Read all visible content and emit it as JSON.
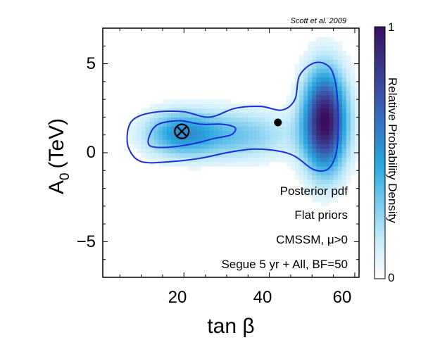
{
  "chart_data": {
    "type": "heatmap",
    "title": "",
    "credit": "Scott et al. 2009",
    "xlabel": "tan β",
    "ylabel_main": "A",
    "ylabel_sub": "0",
    "ylabel_unit": "(TeV)",
    "xlim": [
      1,
      61
    ],
    "ylim": [
      -7,
      7
    ],
    "xticks": [
      20,
      40,
      60
    ],
    "xtick_labels": [
      "20",
      "40",
      "60"
    ],
    "yticks": [
      5,
      0,
      -5
    ],
    "ytick_labels": [
      "5",
      "0",
      "−5"
    ],
    "grid": false,
    "colorbar": {
      "label": "Relative Probability Density",
      "min": 0,
      "max": 1,
      "min_label": "0",
      "max_label": "1",
      "low_color": "#ffffff",
      "mid_color": "#2aa8e0",
      "high_color": "#3b0f5f"
    },
    "contour_color": "#1a2fd6",
    "density_modes": [
      {
        "x": 53,
        "y": 1.8,
        "sx": 3.6,
        "sy": 2.0,
        "w": 1.0
      },
      {
        "x": 19,
        "y": 1.1,
        "sx": 6.0,
        "sy": 0.9,
        "w": 0.45
      },
      {
        "x": 33,
        "y": 1.0,
        "sx": 9.0,
        "sy": 1.0,
        "w": 0.3
      }
    ],
    "contours": [
      {
        "level": "outer",
        "points": [
          [
            7,
            1.4
          ],
          [
            9,
            2.0
          ],
          [
            14,
            2.3
          ],
          [
            20,
            2.3
          ],
          [
            26,
            2.0
          ],
          [
            32,
            2.5
          ],
          [
            38,
            2.6
          ],
          [
            43,
            2.4
          ],
          [
            46,
            3.0
          ],
          [
            47,
            4.3
          ],
          [
            50,
            5.0
          ],
          [
            53,
            5.0
          ],
          [
            55,
            4.4
          ],
          [
            56,
            2.8
          ],
          [
            56,
            0.6
          ],
          [
            55,
            -0.5
          ],
          [
            53,
            -1.0
          ],
          [
            50,
            -0.9
          ],
          [
            46,
            -0.2
          ],
          [
            42,
            0.1
          ],
          [
            36,
            0.2
          ],
          [
            30,
            0.0
          ],
          [
            24,
            -0.3
          ],
          [
            17,
            -0.5
          ],
          [
            10,
            -0.5
          ],
          [
            7,
            0.3
          ]
        ]
      },
      {
        "level": "inner",
        "points": [
          [
            12,
            1.0
          ],
          [
            14,
            1.6
          ],
          [
            19,
            1.8
          ],
          [
            24,
            1.6
          ],
          [
            29,
            1.6
          ],
          [
            32,
            1.4
          ],
          [
            31,
            1.0
          ],
          [
            27,
            0.8
          ],
          [
            22,
            0.5
          ],
          [
            16,
            0.3
          ],
          [
            12,
            0.4
          ]
        ]
      }
    ],
    "markers": [
      {
        "kind": "best-fit",
        "x": 19.5,
        "y": 1.2
      },
      {
        "kind": "posterior-mean",
        "x": 42,
        "y": 1.7
      }
    ],
    "annotations": [
      "Posterior pdf",
      "Flat priors",
      "CMSSM, μ>0",
      "Segue 5 yr + All, BF=50"
    ]
  }
}
